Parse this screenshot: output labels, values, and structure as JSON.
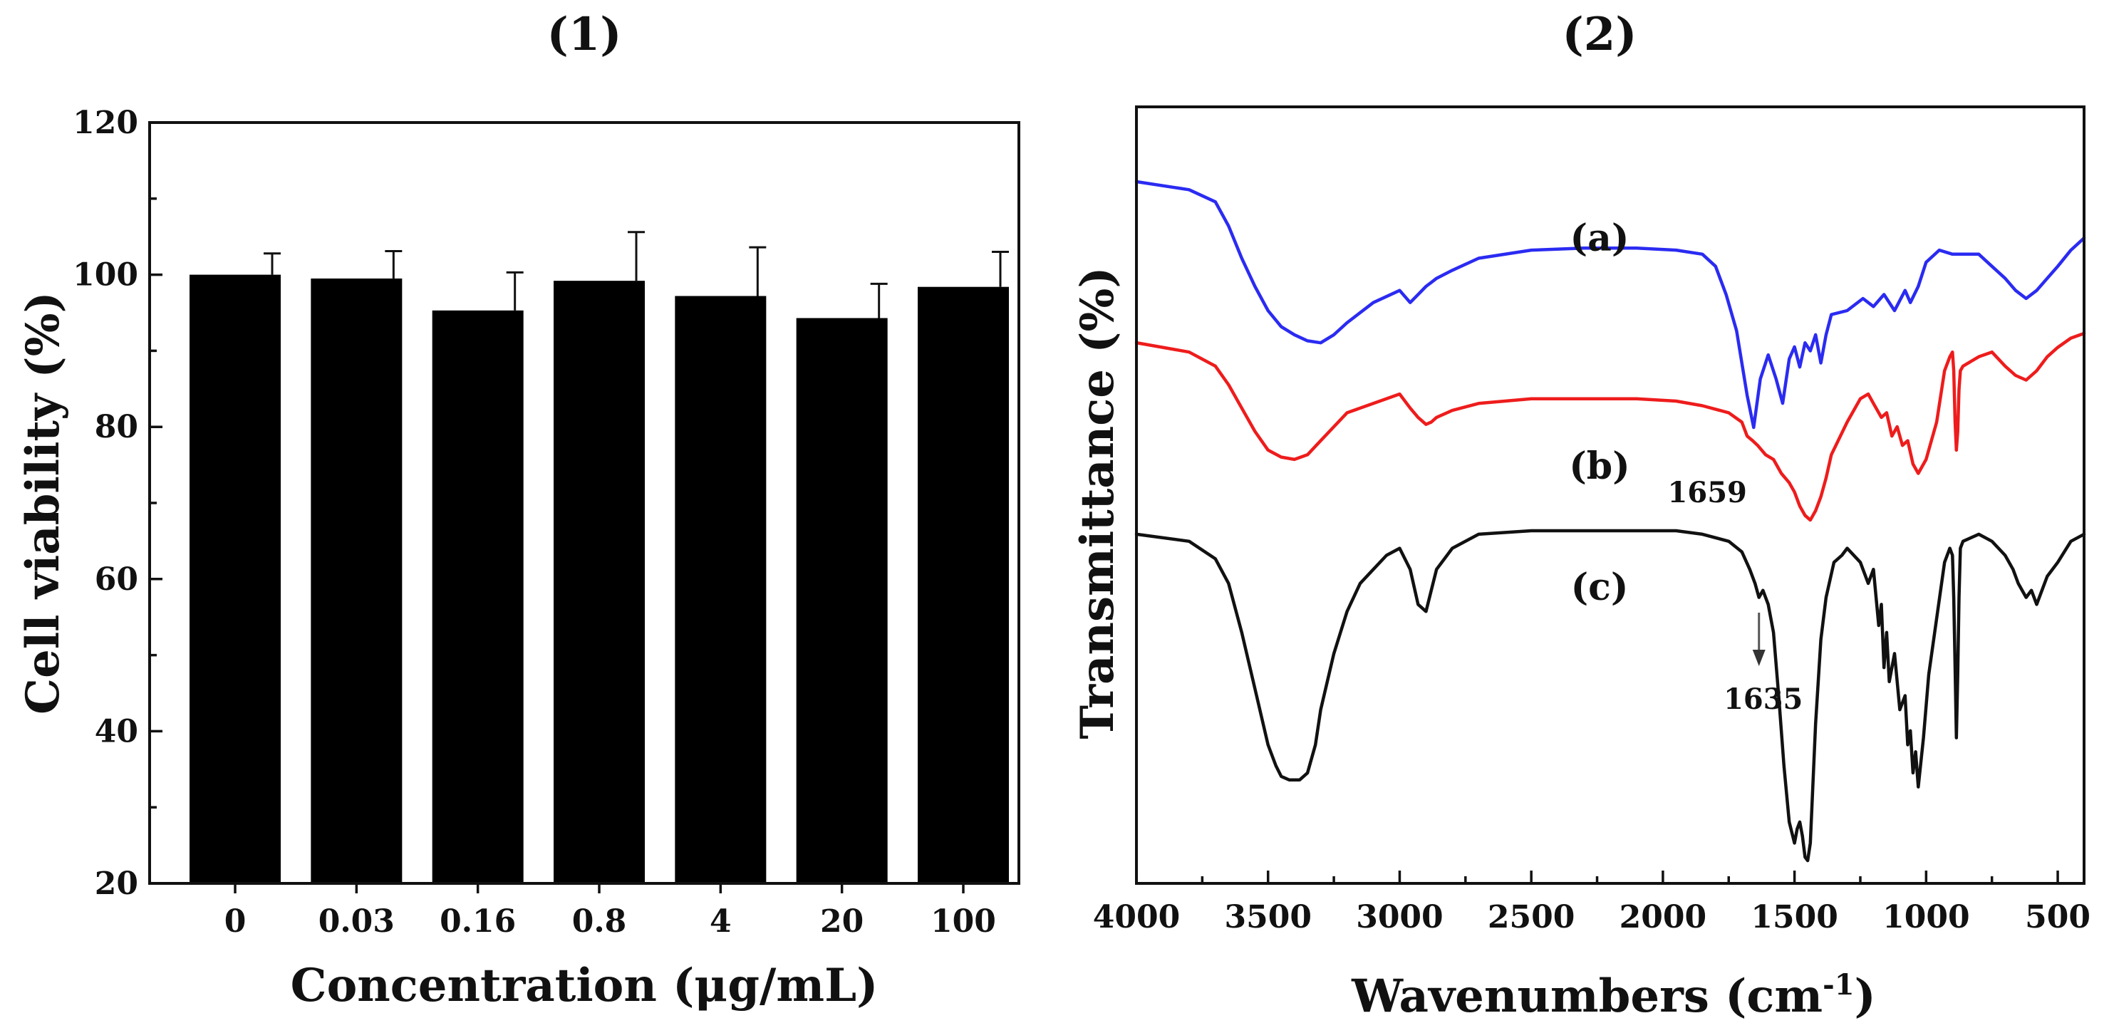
{
  "panels": [
    {
      "label": "(1)"
    },
    {
      "label": "(2)"
    }
  ],
  "chart_data": [
    {
      "type": "bar",
      "panel": "(1)",
      "title": "",
      "xlabel": "Concentration (μg/mL)",
      "ylabel": "Cell viability (%)",
      "categories": [
        "0",
        "0.03",
        "0.16",
        "0.8",
        "4",
        "20",
        "100"
      ],
      "values": [
        100,
        99.5,
        95.3,
        99.2,
        97.2,
        94.3,
        98.4
      ],
      "errors": [
        2.8,
        3.6,
        5.0,
        6.4,
        6.4,
        4.5,
        4.6
      ],
      "ylim": [
        20,
        120
      ],
      "yticks": [
        "20",
        "40",
        "60",
        "80",
        "100",
        "120"
      ],
      "color": "#000000",
      "grid": false
    },
    {
      "type": "line",
      "panel": "(2)",
      "title": "",
      "xlabel": "Wavenumbers (cm",
      "xlabel_sup": "-1",
      "xlabel_close": ")",
      "ylabel": "Transmittance (%)",
      "xlim": [
        4000,
        400
      ],
      "xticks": [
        "4000",
        "3500",
        "3000",
        "2500",
        "2000",
        "1500",
        "1000",
        "500"
      ],
      "ylim": [
        0,
        100
      ],
      "yticks_visible": false,
      "grid": false,
      "series": [
        {
          "name": "(a)",
          "color": "#2b2bf2",
          "x": [
            4000,
            3800,
            3700,
            3650,
            3600,
            3550,
            3500,
            3450,
            3400,
            3350,
            3300,
            3250,
            3200,
            3100,
            3000,
            2960,
            2930,
            2900,
            2880,
            2860,
            2800,
            2700,
            2500,
            2300,
            2100,
            1950,
            1850,
            1800,
            1760,
            1720,
            1700,
            1680,
            1655,
            1630,
            1600,
            1570,
            1545,
            1520,
            1500,
            1480,
            1460,
            1440,
            1420,
            1400,
            1380,
            1360,
            1300,
            1240,
            1200,
            1160,
            1120,
            1080,
            1060,
            1030,
            1000,
            950,
            900,
            850,
            800,
            750,
            700,
            660,
            620,
            580,
            540,
            500,
            450,
            400
          ],
          "y": [
            91,
            89,
            86,
            80,
            72,
            65,
            59,
            55,
            53,
            51.5,
            51,
            53,
            56,
            61,
            64,
            61,
            63,
            65,
            66,
            67,
            69,
            72,
            74,
            74.5,
            74.5,
            74,
            73,
            70,
            63,
            54,
            46,
            38,
            30,
            42,
            48,
            42,
            36,
            47,
            50,
            45,
            51,
            49,
            53,
            46,
            53,
            58,
            59,
            62,
            60,
            63,
            59,
            64,
            61,
            65,
            71,
            74,
            73,
            73,
            73,
            70,
            67,
            64,
            62,
            64,
            67,
            70,
            74,
            77
          ]
        },
        {
          "name": "(b)",
          "color": "#ee1c1c",
          "x": [
            4000,
            3800,
            3700,
            3650,
            3600,
            3550,
            3500,
            3450,
            3400,
            3350,
            3300,
            3250,
            3200,
            3100,
            3000,
            2960,
            2930,
            2900,
            2880,
            2860,
            2800,
            2700,
            2500,
            2300,
            2100,
            1950,
            1850,
            1750,
            1700,
            1680,
            1659,
            1640,
            1610,
            1580,
            1550,
            1520,
            1500,
            1480,
            1460,
            1440,
            1420,
            1400,
            1380,
            1360,
            1300,
            1250,
            1220,
            1200,
            1170,
            1150,
            1130,
            1110,
            1090,
            1070,
            1050,
            1030,
            1000,
            960,
            930,
            910,
            900,
            895,
            890,
            885,
            880,
            875,
            870,
            860,
            800,
            750,
            700,
            660,
            620,
            580,
            540,
            500,
            450,
            400
          ],
          "y": [
            72,
            70,
            67,
            63,
            58,
            53,
            49,
            47.5,
            47,
            48,
            51,
            54,
            57,
            59,
            61,
            58,
            56,
            54.5,
            55,
            56,
            57.5,
            59,
            60,
            60,
            60,
            59.5,
            58.5,
            57,
            55,
            52,
            51,
            50,
            48,
            47,
            44,
            42,
            40,
            37,
            35,
            34,
            36,
            39,
            43,
            48,
            55,
            60,
            61,
            59,
            56,
            57,
            52,
            54,
            50,
            51,
            46,
            44,
            47,
            55,
            66,
            69,
            70,
            66,
            55,
            49,
            53,
            62,
            66,
            67,
            69,
            70,
            67,
            65,
            64,
            66,
            69,
            71,
            73,
            74
          ]
        },
        {
          "name": "(c)",
          "color": "#111111",
          "x": [
            4000,
            3800,
            3700,
            3650,
            3600,
            3550,
            3500,
            3470,
            3450,
            3420,
            3400,
            3380,
            3350,
            3320,
            3300,
            3250,
            3200,
            3150,
            3100,
            3050,
            3000,
            2960,
            2930,
            2900,
            2880,
            2860,
            2800,
            2700,
            2500,
            2300,
            2100,
            1950,
            1850,
            1750,
            1700,
            1670,
            1650,
            1635,
            1620,
            1600,
            1580,
            1560,
            1540,
            1520,
            1500,
            1490,
            1480,
            1470,
            1460,
            1450,
            1440,
            1420,
            1400,
            1380,
            1350,
            1320,
            1300,
            1250,
            1220,
            1200,
            1180,
            1170,
            1160,
            1150,
            1140,
            1120,
            1100,
            1080,
            1070,
            1060,
            1050,
            1040,
            1030,
            1010,
            990,
            960,
            930,
            910,
            900,
            895,
            890,
            885,
            880,
            875,
            870,
            860,
            800,
            750,
            700,
            670,
            650,
            620,
            600,
            580,
            560,
            540,
            500,
            450,
            400
          ],
          "y": [
            47,
            46,
            43.5,
            40,
            33,
            25,
            17,
            14,
            12.5,
            12,
            12,
            12,
            13,
            17,
            22,
            30,
            36,
            40,
            42,
            44,
            45,
            42,
            37,
            36,
            39,
            42,
            45,
            47,
            47.5,
            47.5,
            47.5,
            47.5,
            47,
            46,
            44.5,
            42,
            40,
            38,
            39,
            37,
            33,
            24,
            14,
            6,
            3,
            5,
            6,
            4,
            1,
            0.5,
            3,
            20,
            32,
            38,
            43,
            44,
            45,
            43,
            40,
            42,
            34,
            37,
            28,
            33,
            26,
            30,
            22,
            24,
            17,
            19,
            13,
            16,
            11,
            18,
            27,
            35,
            43,
            45,
            44,
            38,
            28,
            18,
            27,
            38,
            45,
            46,
            47,
            46,
            44,
            42,
            40,
            38,
            39,
            37,
            39,
            41,
            43,
            46,
            47
          ]
        }
      ],
      "series_labels": [
        "(a)",
        "(b)",
        "(c)"
      ],
      "annotations": [
        {
          "text": "1659",
          "x": 1659,
          "series": "(b)"
        },
        {
          "text": "1635",
          "x": 1635,
          "series": "(c)",
          "arrow": true
        }
      ]
    }
  ]
}
